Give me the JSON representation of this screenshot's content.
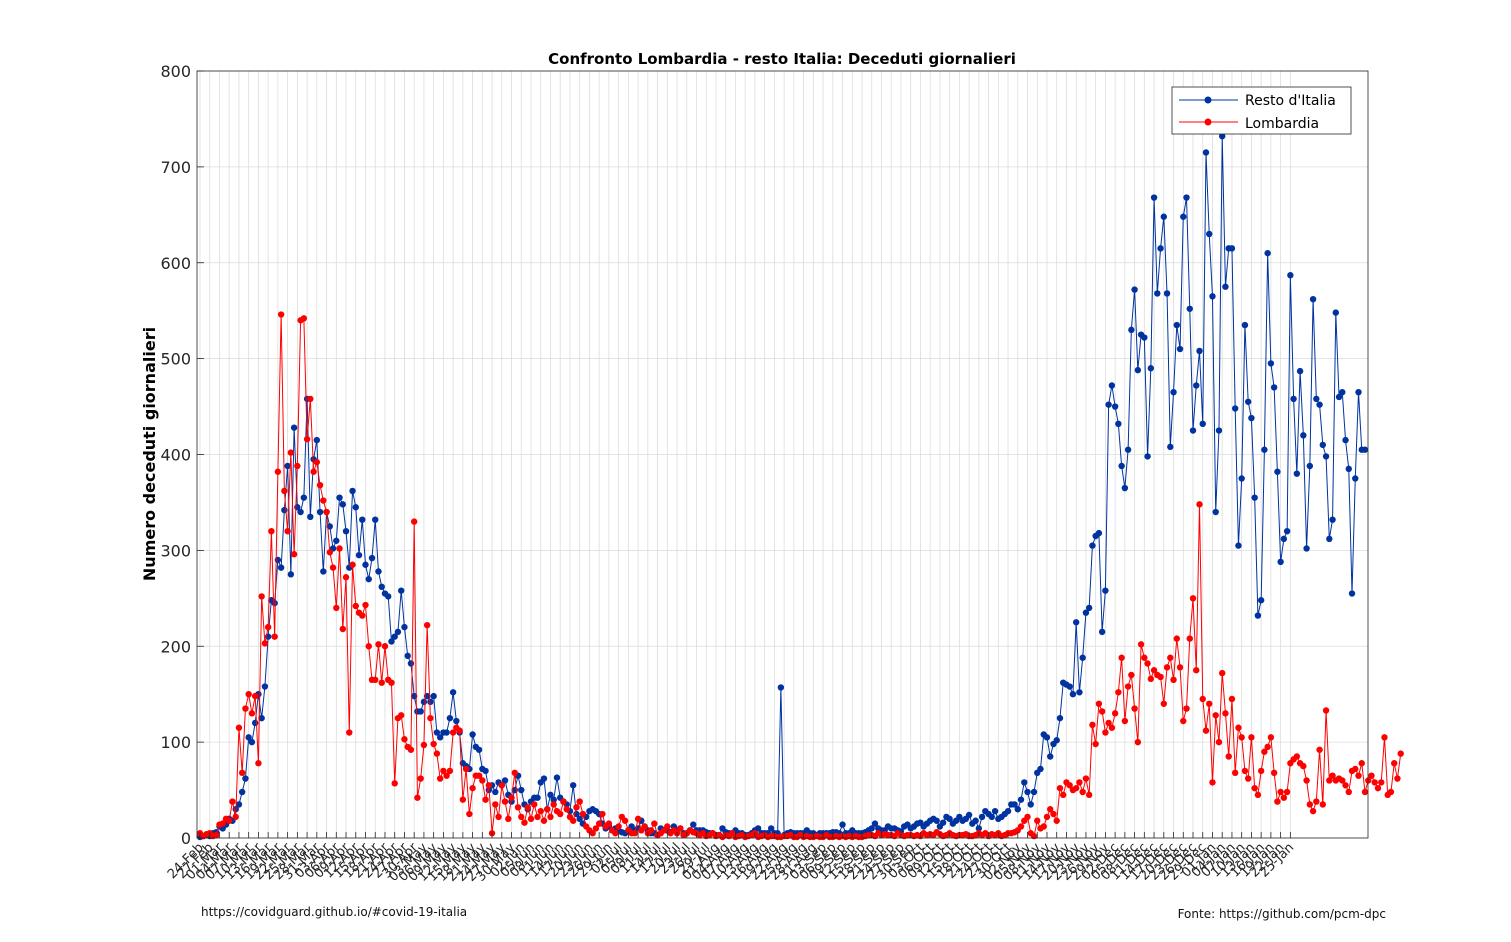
{
  "chart_data": {
    "type": "line",
    "title": "Confronto Lombardia - resto Italia: Deceduti giornalieri",
    "ylabel": "Numero deceduti giornalieri",
    "xlabel": "",
    "ylim": [
      0,
      800
    ],
    "yticks": [
      0,
      100,
      200,
      300,
      400,
      500,
      600,
      700,
      800
    ],
    "grid": true,
    "legend_position": "top-right",
    "x_start": "24 Feb 2020",
    "x_end": "27 Jan 2021",
    "xtick_labels": [
      "24-Feb",
      "27-Feb",
      "01-Mar",
      "04-Mar",
      "07-Mar",
      "10-Mar",
      "13-Mar",
      "16-Mar",
      "19-Mar",
      "22-Mar",
      "25-Mar",
      "28-Mar",
      "31-Mar",
      "03-Apr",
      "06-Apr",
      "09-Apr",
      "12-Apr",
      "15-Apr",
      "18-Apr",
      "21-Apr",
      "24-Apr",
      "27-Apr",
      "30-Apr",
      "03-May",
      "06-May",
      "09-May",
      "12-May",
      "15-May",
      "18-May",
      "21-May",
      "24-May",
      "27-May",
      "30-May",
      "02-Jun",
      "05-Jun",
      "08-Jun",
      "11-Jun",
      "14-Jun",
      "17-Jun",
      "20-Jun",
      "23-Jun",
      "26-Jun",
      "29-Jun",
      "02-Jul",
      "05-Jul",
      "08-Jul",
      "11-Jul",
      "14-Jul",
      "17-Jul",
      "20-Jul",
      "23-Jul",
      "26-Jul",
      "29-Jul",
      "01-Aug",
      "04-Aug",
      "07-Aug",
      "10-Aug",
      "13-Aug",
      "16-Aug",
      "19-Aug",
      "22-Aug",
      "25-Aug",
      "28-Aug",
      "31-Aug",
      "03-Sep",
      "06-Sep",
      "09-Sep",
      "12-Sep",
      "15-Sep",
      "18-Sep",
      "21-Sep",
      "24-Sep",
      "27-Sep",
      "30-Sep",
      "03-Oct",
      "06-Oct",
      "09-Oct",
      "12-Oct",
      "15-Oct",
      "18-Oct",
      "21-Oct",
      "24-Oct",
      "27-Oct",
      "30-Oct",
      "02-Nov",
      "05-Nov",
      "08-Nov",
      "11-Nov",
      "14-Nov",
      "17-Nov",
      "20-Nov",
      "23-Nov",
      "26-Nov",
      "29-Nov",
      "02-Dec",
      "05-Dec",
      "08-Dec",
      "11-Dec",
      "14-Dec",
      "17-Dec",
      "20-Dec",
      "23-Dec",
      "26-Dec",
      "29-Dec",
      "01-Jan",
      "04-Jan",
      "07-Jan",
      "10-Jan",
      "13-Jan",
      "16-Jan",
      "19-Jan",
      "22-Jan",
      "25-Jan"
    ],
    "series": [
      {
        "name": "Resto d'Italia",
        "color": "#0033a0",
        "values": [
          1,
          2,
          3,
          2,
          5,
          6,
          12,
          10,
          14,
          20,
          18,
          30,
          35,
          48,
          62,
          105,
          100,
          120,
          150,
          125,
          158,
          210,
          248,
          245,
          290,
          282,
          342,
          388,
          275,
          428,
          345,
          340,
          355,
          458,
          335,
          395,
          415,
          340,
          278,
          340,
          325,
          302,
          310,
          355,
          348,
          320,
          282,
          362,
          345,
          295,
          332,
          285,
          270,
          292,
          332,
          278,
          262,
          255,
          252,
          205,
          210,
          215,
          258,
          220,
          190,
          182,
          148,
          132,
          132,
          142,
          148,
          142,
          148,
          110,
          105,
          110,
          110,
          125,
          152,
          122,
          110,
          78,
          75,
          72,
          108,
          95,
          92,
          72,
          70,
          50,
          55,
          48,
          58,
          55,
          60,
          45,
          38,
          50,
          65,
          50,
          35,
          30,
          38,
          42,
          42,
          58,
          62,
          30,
          45,
          40,
          63,
          42,
          38,
          35,
          28,
          55,
          25,
          20,
          15,
          22,
          28,
          30,
          28,
          25,
          15,
          10,
          12,
          8,
          10,
          8,
          6,
          5,
          8,
          12,
          8,
          10,
          18,
          12,
          8,
          5,
          5,
          3,
          10,
          8,
          8,
          6,
          12,
          8,
          10,
          5,
          5,
          8,
          14,
          8,
          8,
          8,
          6,
          5,
          5,
          3,
          3,
          10,
          6,
          5,
          5,
          8,
          5,
          5,
          3,
          3,
          5,
          8,
          10,
          5,
          5,
          5,
          10,
          5,
          5,
          157,
          3,
          5,
          6,
          5,
          5,
          5,
          5,
          8,
          5,
          5,
          3,
          5,
          5,
          5,
          5,
          6,
          6,
          5,
          14,
          5,
          5,
          8,
          5,
          5,
          5,
          6,
          8,
          10,
          15,
          10,
          8,
          8,
          12,
          10,
          10,
          8,
          7,
          12,
          14,
          10,
          12,
          15,
          16,
          12,
          15,
          18,
          20,
          18,
          12,
          16,
          22,
          20,
          15,
          18,
          22,
          18,
          20,
          24,
          15,
          18,
          10,
          22,
          28,
          25,
          22,
          28,
          20,
          22,
          25,
          28,
          35,
          35,
          30,
          40,
          58,
          48,
          35,
          48,
          68,
          72,
          108,
          105,
          85,
          98,
          102,
          125,
          162,
          160,
          158,
          150,
          225,
          152,
          188,
          235,
          240,
          305,
          315,
          318,
          215,
          258,
          452,
          472,
          450,
          432,
          388,
          365,
          405,
          530,
          572,
          488,
          525,
          522,
          398,
          490,
          668,
          568,
          615,
          648,
          568,
          408,
          465,
          535,
          510,
          648,
          668,
          552,
          425,
          472,
          508,
          432,
          715,
          630,
          565,
          340,
          425,
          732,
          575,
          615,
          615,
          448,
          305,
          375,
          535,
          455,
          438,
          355,
          232,
          248,
          405,
          610,
          495,
          470,
          382,
          288,
          312,
          320,
          587,
          458,
          380,
          487,
          420,
          302,
          388,
          562,
          458,
          452,
          410,
          398,
          312,
          332,
          548,
          460,
          465,
          415,
          385,
          255,
          375,
          465,
          405,
          405
        ]
      },
      {
        "name": "Lombardia",
        "color": "#ff0000",
        "values": [
          5,
          2,
          4,
          5,
          2,
          3,
          14,
          15,
          20,
          18,
          38,
          22,
          115,
          68,
          135,
          150,
          130,
          148,
          78,
          252,
          203,
          220,
          320,
          210,
          382,
          546,
          362,
          320,
          402,
          296,
          388,
          540,
          542,
          416,
          458,
          382,
          392,
          368,
          352,
          340,
          298,
          282,
          240,
          302,
          218,
          272,
          110,
          285,
          242,
          235,
          232,
          243,
          200,
          165,
          165,
          202,
          162,
          200,
          165,
          162,
          57,
          125,
          128,
          103,
          95,
          92,
          330,
          42,
          62,
          97,
          222,
          125,
          98,
          88,
          62,
          70,
          65,
          70,
          110,
          115,
          112,
          40,
          72,
          25,
          52,
          65,
          65,
          60,
          40,
          55,
          5,
          35,
          22,
          55,
          38,
          20,
          42,
          68,
          32,
          22,
          16,
          32,
          20,
          35,
          22,
          28,
          18,
          30,
          22,
          35,
          28,
          25,
          38,
          30,
          22,
          18,
          32,
          38,
          25,
          12,
          8,
          5,
          10,
          15,
          25,
          12,
          15,
          8,
          5,
          12,
          22,
          18,
          8,
          5,
          5,
          20,
          8,
          12,
          5,
          8,
          15,
          3,
          5,
          8,
          12,
          5,
          8,
          5,
          10,
          3,
          5,
          8,
          6,
          5,
          3,
          5,
          2,
          3,
          5,
          2,
          3,
          1,
          3,
          2,
          5,
          1,
          2,
          3,
          1,
          2,
          3,
          5,
          1,
          2,
          3,
          1,
          2,
          2,
          1,
          1,
          2,
          2,
          3,
          1,
          1,
          3,
          1,
          2,
          1,
          1,
          2,
          1,
          1,
          3,
          1,
          1,
          2,
          1,
          2,
          1,
          2,
          1,
          2,
          1,
          1,
          2,
          3,
          3,
          2,
          5,
          3,
          4,
          3,
          3,
          2,
          5,
          3,
          2,
          3,
          3,
          2,
          3,
          2,
          5,
          3,
          4,
          3,
          6,
          4,
          2,
          3,
          5,
          3,
          2,
          3,
          3,
          4,
          2,
          2,
          3,
          5,
          3,
          5,
          2,
          4,
          3,
          5,
          2,
          3,
          5,
          5,
          6,
          8,
          12,
          18,
          22,
          5,
          2,
          18,
          10,
          12,
          22,
          30,
          25,
          18,
          52,
          45,
          58,
          55,
          50,
          52,
          58,
          48,
          62,
          45,
          118,
          98,
          140,
          132,
          110,
          120,
          115,
          130,
          152,
          188,
          122,
          158,
          170,
          135,
          100,
          202,
          188,
          182,
          166,
          175,
          170,
          168,
          140,
          178,
          188,
          165,
          208,
          178,
          122,
          135,
          208,
          250,
          175,
          348,
          145,
          112,
          140,
          58,
          128,
          100,
          172,
          130,
          85,
          145,
          68,
          115,
          105,
          70,
          62,
          105,
          52,
          45,
          70,
          90,
          95,
          105,
          68,
          38,
          48,
          42,
          48,
          78,
          82,
          85,
          78,
          75,
          60,
          35,
          28,
          38,
          92,
          35,
          133,
          60,
          65,
          60,
          62,
          60,
          55,
          48,
          70,
          72,
          65,
          78,
          48,
          60,
          65,
          58,
          52,
          58,
          105,
          45,
          48,
          78,
          62,
          88
        ]
      }
    ]
  },
  "footer": {
    "left": "https://covidguard.github.io/#covid-19-italia",
    "right": "Fonte: https://github.com/pcm-dpc"
  }
}
